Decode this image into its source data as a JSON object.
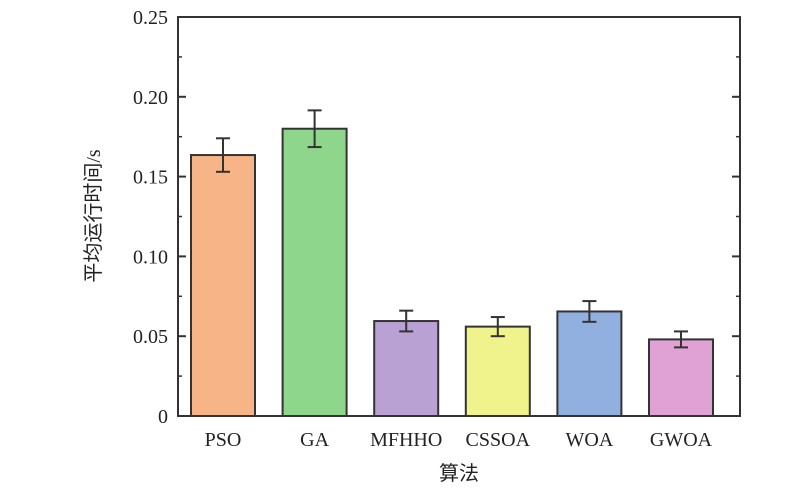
{
  "chart_data": {
    "type": "bar",
    "title": "",
    "xlabel": "算法",
    "ylabel": "平均运行时间/s",
    "categories": [
      "PSO",
      "GA",
      "MFHHO",
      "CSSOA",
      "WOA",
      "GWOA"
    ],
    "values": [
      0.1635,
      0.18,
      0.0595,
      0.056,
      0.0655,
      0.048
    ],
    "errors": [
      0.0105,
      0.0115,
      0.0065,
      0.006,
      0.0065,
      0.005
    ],
    "colors": [
      "#f7b486",
      "#8fd68d",
      "#b9a1d3",
      "#f0f38b",
      "#91b0e0",
      "#e0a1d4"
    ],
    "ylim": [
      0,
      0.25
    ],
    "yticks": [
      "0",
      "0.05",
      "0.10",
      "0.15",
      "0.20",
      "0.25"
    ],
    "grid": false
  }
}
